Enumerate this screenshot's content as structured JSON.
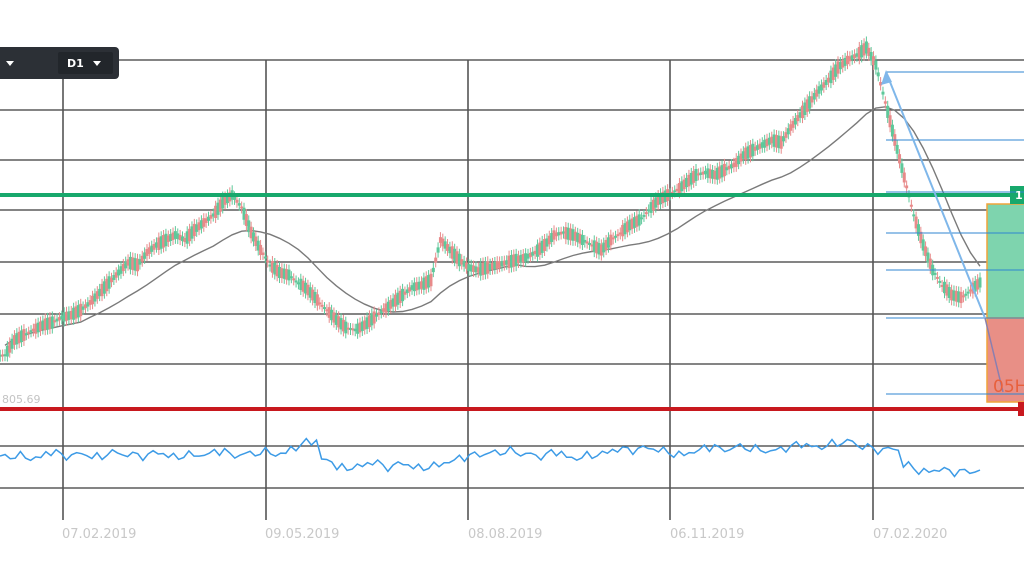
{
  "toolbar": {
    "dropdown_left": {
      "label": "",
      "icon": "chevron-down-icon"
    },
    "timeframe": {
      "label": "D1",
      "icon": "chevron-down-icon"
    }
  },
  "colors": {
    "grid": "#3a3a3a",
    "up_candle": "#5ec89a",
    "down_candle": "#e88a8a",
    "moving_average": "#7a7a7a",
    "resistance_line": "#17a86c",
    "support_line": "#c8181e",
    "fibonacci_levels": "#2f86d0",
    "trend_arrow": "#7fb7ea",
    "oscillator": "#3d9be6",
    "target_zone": "#7ed4ae",
    "stop_zone": "#e88f86",
    "zone_border": "#f0a43a"
  },
  "labels": {
    "low_value": "805.69",
    "resistance_badge": "1",
    "position_text": "05H"
  },
  "chart_data": {
    "type": "candlestick",
    "x_axis": {
      "tick_labels": [
        "07.02.2019",
        "09.05.2019",
        "08.08.2019",
        "06.11.2019",
        "07.02.2020"
      ]
    },
    "y_axis": {
      "visible_low_label": "805.69"
    },
    "grid": true,
    "series": [
      {
        "kind": "candles",
        "values": [
          -0.06,
          0.0,
          0.02,
          0.04,
          0.06,
          0.07,
          0.09,
          0.1,
          0.12,
          0.15,
          0.19,
          0.23,
          0.27,
          0.31,
          0.3,
          0.35,
          0.38,
          0.4,
          0.42,
          0.4,
          0.44,
          0.47,
          0.5,
          0.55,
          0.58,
          0.53,
          0.43,
          0.36,
          0.3,
          0.27,
          0.26,
          0.23,
          0.2,
          0.16,
          0.12,
          0.08,
          0.05,
          0.04,
          0.06,
          0.09,
          0.12,
          0.15,
          0.18,
          0.21,
          0.22,
          0.24,
          0.4,
          0.36,
          0.32,
          0.29,
          0.28,
          0.29,
          0.3,
          0.31,
          0.32,
          0.33,
          0.35,
          0.38,
          0.42,
          0.43,
          0.42,
          0.4,
          0.38,
          0.36,
          0.4,
          0.43,
          0.46,
          0.48,
          0.52,
          0.56,
          0.58,
          0.6,
          0.63,
          0.66,
          0.67,
          0.66,
          0.68,
          0.7,
          0.74,
          0.76,
          0.78,
          0.8,
          0.79,
          0.85,
          0.9,
          0.95,
          1.0,
          1.04,
          1.09,
          1.12,
          1.14,
          1.17,
          1.1,
          0.95,
          0.8,
          0.65,
          0.5,
          0.38,
          0.28,
          0.22,
          0.18,
          0.17,
          0.2,
          0.23
        ]
      },
      {
        "kind": "moving_average",
        "name": ""
      },
      {
        "kind": "oscillator",
        "values": [
          0.44,
          0.45,
          0.42,
          0.47,
          0.43,
          0.46,
          0.44,
          0.48,
          0.45,
          0.43,
          0.47,
          0.44,
          0.46,
          0.45,
          0.48,
          0.44,
          0.47,
          0.49,
          0.46,
          0.52,
          0.58,
          0.4,
          0.33,
          0.34,
          0.37,
          0.32,
          0.36,
          0.33,
          0.35,
          0.38,
          0.42,
          0.45,
          0.48,
          0.5,
          0.46,
          0.43,
          0.47,
          0.42,
          0.45,
          0.47,
          0.5,
          0.49,
          0.52,
          0.5,
          0.46,
          0.48,
          0.52,
          0.5,
          0.54,
          0.52,
          0.49,
          0.51,
          0.55,
          0.53,
          0.57,
          0.59,
          0.53,
          0.49,
          0.51,
          0.35,
          0.29,
          0.3,
          0.27,
          0.28,
          0.31
        ]
      }
    ]
  }
}
